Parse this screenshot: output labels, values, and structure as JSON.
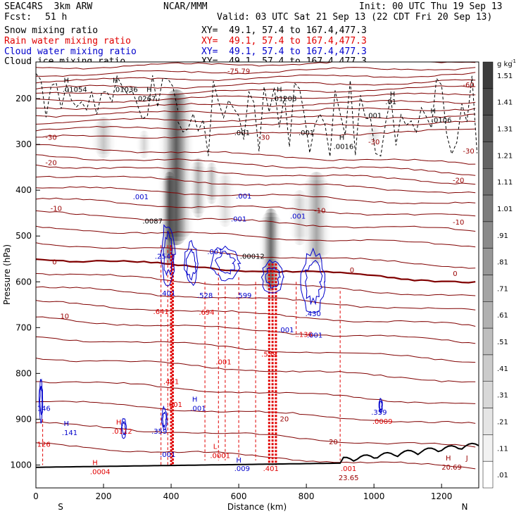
{
  "header": {
    "model": "SEAC4RS  3km ARW",
    "org": "NCAR/MMM",
    "init": "Init: 00 UTC Thu 19 Sep 13",
    "fcst_label": "Fcst:",
    "fcst_value": "51 h",
    "valid": "Valid: 03 UTC Sat 21 Sep 13 (22 CDT Fri 20 Sep 13)",
    "fields": [
      {
        "name": "Snow mixing ratio",
        "xy": "XY=  49.1, 57.4 to 167.4,477.3",
        "color": "#000000"
      },
      {
        "name": "Rain water mixing ratio",
        "xy": "XY=  49.1, 57.4 to 167.4,477.3",
        "color": "#e00000"
      },
      {
        "name": "Cloud water mixing ratio",
        "xy": "XY=  49.1, 57.4 to 167.4,477.3",
        "color": "#0000cc"
      },
      {
        "name": "Cloud ice mixing ratio",
        "xy": "XY=  49.1, 57.4 to 167.4,477.3",
        "color": "#000000"
      }
    ]
  },
  "chart_data": {
    "type": "heatmap",
    "title": "",
    "xlabel": "Distance (km)",
    "ylabel": "Pressure (hPa)",
    "xlim": [
      0,
      1310
    ],
    "ylim": [
      1050,
      120
    ],
    "x_ticks": [
      0,
      200,
      400,
      600,
      800,
      1000,
      1200
    ],
    "y_ticks": [
      1000,
      900,
      800,
      700,
      600,
      500,
      400,
      300,
      200
    ],
    "x_end_labels": [
      "S",
      "N"
    ],
    "colorbar": {
      "unit": "g kg",
      "unit_exp": "-1",
      "levels": [
        "1.51",
        "1.41",
        "1.31",
        "1.21",
        "1.11",
        "1.01",
        ".91",
        ".81",
        ".71",
        ".61",
        ".51",
        ".41",
        ".31",
        ".21",
        ".11",
        ".01"
      ]
    },
    "temperature_labels": [
      {
        "text": "-75.79",
        "x": 600,
        "p": 145,
        "color": "#990000"
      },
      {
        "text": "-60",
        "x": 1280,
        "p": 175,
        "color": "#990000"
      },
      {
        "text": "-30",
        "x": 45,
        "p": 290,
        "color": "#990000"
      },
      {
        "text": "-30",
        "x": 675,
        "p": 290,
        "color": "#990000"
      },
      {
        "text": "-30",
        "x": 1000,
        "p": 300,
        "color": "#990000"
      },
      {
        "text": "-30",
        "x": 1280,
        "p": 320,
        "color": "#990000"
      },
      {
        "text": "-20",
        "x": 45,
        "p": 345,
        "color": "#990000"
      },
      {
        "text": "-20",
        "x": 1250,
        "p": 384,
        "color": "#990000"
      },
      {
        "text": "-10",
        "x": 60,
        "p": 445,
        "color": "#990000"
      },
      {
        "text": "-10",
        "x": 840,
        "p": 450,
        "color": "#990000"
      },
      {
        "text": "-10",
        "x": 1250,
        "p": 475,
        "color": "#990000"
      },
      {
        "text": "0",
        "x": 55,
        "p": 562,
        "color": "#990000"
      },
      {
        "text": "0",
        "x": 935,
        "p": 580,
        "color": "#990000"
      },
      {
        "text": "0",
        "x": 1240,
        "p": 587,
        "color": "#990000"
      },
      {
        "text": "10",
        "x": 85,
        "p": 680,
        "color": "#990000"
      },
      {
        "text": "20",
        "x": 735,
        "p": 905,
        "color": "#990000"
      },
      {
        "text": "20",
        "x": 880,
        "p": 955,
        "color": "#990000"
      }
    ],
    "extrema_labels": [
      {
        "text": "H",
        "x": 90,
        "p": 165,
        "color": "#000000"
      },
      {
        "text": ".01054",
        "x": 115,
        "p": 185,
        "color": "#000000"
      },
      {
        "text": "H",
        "x": 235,
        "p": 165,
        "color": "#000000"
      },
      {
        "text": ".01036",
        "x": 265,
        "p": 185,
        "color": "#000000"
      },
      {
        "text": "H",
        "x": 335,
        "p": 185,
        "color": "#000000"
      },
      {
        "text": ".0267",
        "x": 325,
        "p": 205,
        "color": "#000000"
      },
      {
        "text": "H",
        "x": 720,
        "p": 185,
        "color": "#000000"
      },
      {
        "text": ".01208",
        "x": 735,
        "p": 205,
        "color": "#000000"
      },
      {
        "text": "H",
        "x": 1055,
        "p": 195,
        "color": "#000000"
      },
      {
        "text": ".01",
        "x": 1050,
        "p": 212,
        "color": "#000000"
      },
      {
        "text": ".001",
        "x": 1000,
        "p": 242,
        "color": "#000000"
      },
      {
        "text": "H",
        "x": 1175,
        "p": 232,
        "color": "#000000"
      },
      {
        "text": ".0106",
        "x": 1200,
        "p": 252,
        "color": "#000000"
      },
      {
        "text": ".001",
        "x": 610,
        "p": 280,
        "color": "#000000"
      },
      {
        "text": ".001",
        "x": 800,
        "p": 280,
        "color": "#000000"
      },
      {
        "text": "H",
        "x": 905,
        "p": 290,
        "color": "#000000"
      },
      {
        "text": ".0016",
        "x": 910,
        "p": 310,
        "color": "#000000"
      },
      {
        "text": ".001",
        "x": 310,
        "p": 420,
        "color": "#0000cc"
      },
      {
        "text": ".001",
        "x": 615,
        "p": 418,
        "color": "#0000cc"
      },
      {
        "text": ".001",
        "x": 600,
        "p": 468,
        "color": "#0000cc"
      },
      {
        "text": ".001",
        "x": 775,
        "p": 462,
        "color": "#0000cc"
      },
      {
        "text": ".0087",
        "x": 345,
        "p": 473,
        "color": "#000000"
      },
      {
        "text": ".001",
        "x": 530,
        "p": 540,
        "color": "#0000cc"
      },
      {
        "text": ".00012",
        "x": 640,
        "p": 550,
        "color": "#000000"
      },
      {
        "text": ".254",
        "x": 375,
        "p": 550,
        "color": "#0000cc"
      },
      {
        "text": ".401",
        "x": 390,
        "p": 630,
        "color": "#0000cc"
      },
      {
        "text": ".528",
        "x": 500,
        "p": 635,
        "color": "#0000cc"
      },
      {
        "text": ".599",
        "x": 615,
        "p": 635,
        "color": "#0000cc"
      },
      {
        "text": ".641",
        "x": 370,
        "p": 670,
        "color": "#e00000"
      },
      {
        "text": ".694",
        "x": 505,
        "p": 672,
        "color": "#e00000"
      },
      {
        "text": ".430",
        "x": 820,
        "p": 675,
        "color": "#0000cc"
      },
      {
        "text": ".001",
        "x": 740,
        "p": 710,
        "color": "#0000cc"
      },
      {
        "text": ".136",
        "x": 795,
        "p": 720,
        "color": "#e00000"
      },
      {
        "text": ".001",
        "x": 825,
        "p": 722,
        "color": "#0000cc"
      },
      {
        "text": ".539",
        "x": 690,
        "p": 763,
        "color": "#e00000"
      },
      {
        "text": ".001",
        "x": 555,
        "p": 780,
        "color": "#e00000"
      },
      {
        "text": ".401",
        "x": 400,
        "p": 823,
        "color": "#e00000"
      },
      {
        "text": ".001",
        "x": 410,
        "p": 873,
        "color": "#e00000"
      },
      {
        "text": "H",
        "x": 470,
        "p": 862,
        "color": "#0000cc"
      },
      {
        "text": ".001",
        "x": 480,
        "p": 882,
        "color": "#0000cc"
      },
      {
        "text": ".146",
        "x": 20,
        "p": 882,
        "color": "#0000cc"
      },
      {
        "text": ".141",
        "x": 100,
        "p": 935,
        "color": "#0000cc"
      },
      {
        "text": "H",
        "x": 90,
        "p": 915,
        "color": "#0000cc"
      },
      {
        "text": "H",
        "x": 245,
        "p": 912,
        "color": "#e00000"
      },
      {
        "text": ".0112",
        "x": 255,
        "p": 932,
        "color": "#e00000"
      },
      {
        "text": ".359",
        "x": 365,
        "p": 932,
        "color": "#0000cc"
      },
      {
        "text": ".001",
        "x": 390,
        "p": 982,
        "color": "#0000cc"
      },
      {
        "text": ".359",
        "x": 1015,
        "p": 890,
        "color": "#0000cc"
      },
      {
        "text": ".0009",
        "x": 1025,
        "p": 910,
        "color": "#e00000"
      },
      {
        "text": ".126",
        "x": 20,
        "p": 960,
        "color": "#e00000"
      },
      {
        "text": "H",
        "x": 175,
        "p": 1000,
        "color": "#e00000"
      },
      {
        "text": ".0004",
        "x": 190,
        "p": 1020,
        "color": "#e00000"
      },
      {
        "text": "L",
        "x": 530,
        "p": 965,
        "color": "#e00000"
      },
      {
        "text": ".0001",
        "x": 545,
        "p": 985,
        "color": "#e00000"
      },
      {
        "text": "H",
        "x": 600,
        "p": 995,
        "color": "#0000cc"
      },
      {
        "text": ".009",
        "x": 610,
        "p": 1013,
        "color": "#0000cc"
      },
      {
        "text": ".401",
        "x": 695,
        "p": 1013,
        "color": "#e00000"
      },
      {
        "text": ".001",
        "x": 925,
        "p": 1013,
        "color": "#e00000"
      },
      {
        "text": "23.65",
        "x": 925,
        "p": 1033,
        "color": "#990000"
      },
      {
        "text": "H",
        "x": 1220,
        "p": 990,
        "color": "#990000"
      },
      {
        "text": "20.69",
        "x": 1230,
        "p": 1010,
        "color": "#990000"
      },
      {
        "text": "J",
        "x": 1275,
        "p": 990,
        "color": "#990000"
      }
    ],
    "snow_plumes": [
      {
        "x": 415,
        "p_top": 180,
        "p_bot": 520,
        "width": 28,
        "intensity": 0.85
      },
      {
        "x": 395,
        "p_top": 360,
        "p_bot": 560,
        "width": 14,
        "intensity": 0.7
      },
      {
        "x": 480,
        "p_top": 330,
        "p_bot": 460,
        "width": 16,
        "intensity": 0.35
      },
      {
        "x": 520,
        "p_top": 340,
        "p_bot": 430,
        "width": 14,
        "intensity": 0.3
      },
      {
        "x": 200,
        "p_top": 240,
        "p_bot": 330,
        "width": 22,
        "intensity": 0.25
      },
      {
        "x": 320,
        "p_top": 270,
        "p_bot": 330,
        "width": 14,
        "intensity": 0.18
      },
      {
        "x": 695,
        "p_top": 440,
        "p_bot": 620,
        "width": 18,
        "intensity": 0.75
      },
      {
        "x": 830,
        "p_top": 360,
        "p_bot": 560,
        "width": 24,
        "intensity": 0.4
      },
      {
        "x": 780,
        "p_top": 400,
        "p_bot": 520,
        "width": 18,
        "intensity": 0.2
      },
      {
        "x": 1000,
        "p_top": 260,
        "p_bot": 300,
        "width": 18,
        "intensity": 0.15
      },
      {
        "x": 560,
        "p_top": 360,
        "p_bot": 480,
        "width": 18,
        "intensity": 0.15
      }
    ]
  }
}
